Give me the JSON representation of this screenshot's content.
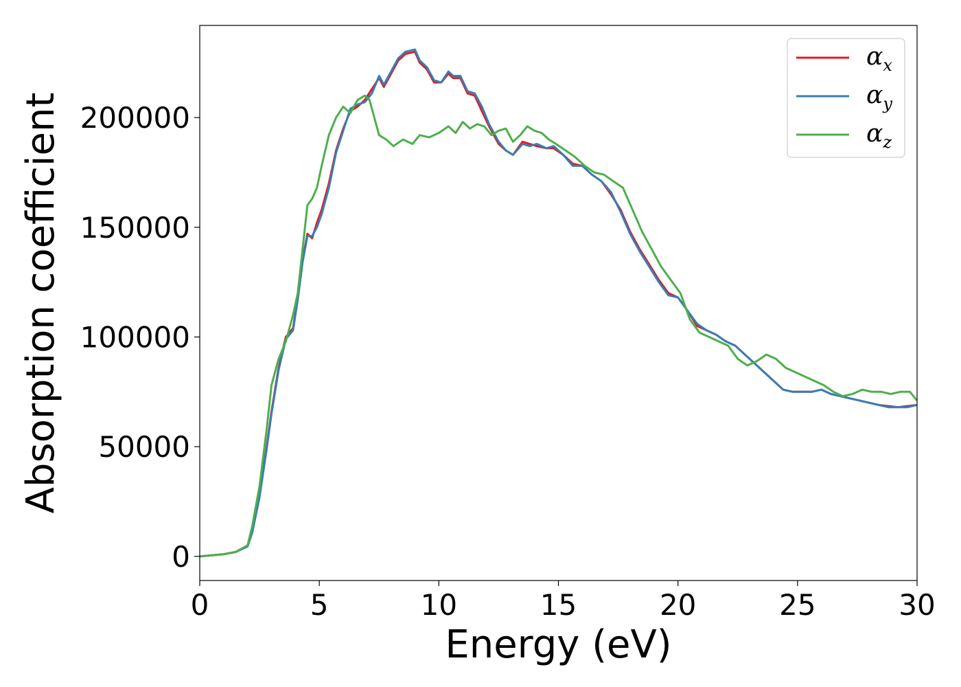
{
  "chart_data": {
    "type": "line",
    "xlabel": "Energy (eV)",
    "ylabel": "Absorption coefficient",
    "xlim": [
      0,
      30
    ],
    "ylim": [
      -11000,
      242000
    ],
    "xticks": [
      0,
      5,
      10,
      15,
      20,
      25,
      30
    ],
    "xtick_labels": [
      "0",
      "5",
      "10",
      "15",
      "20",
      "25",
      "30"
    ],
    "yticks": [
      0,
      50000,
      100000,
      150000,
      200000
    ],
    "ytick_labels": [
      "0",
      "50000",
      "100000",
      "150000",
      "200000"
    ],
    "grid": false,
    "legend_position": "top-right",
    "series": [
      {
        "name": "α",
        "subscript": "x",
        "color": "#e41a1c",
        "x": [
          0,
          1,
          1.5,
          2,
          2.2,
          2.5,
          2.8,
          3,
          3.3,
          3.6,
          3.9,
          4.1,
          4.3,
          4.5,
          4.7,
          4.9,
          5.1,
          5.4,
          5.7,
          6,
          6.3,
          6.6,
          6.9,
          7.2,
          7.5,
          7.7,
          8,
          8.3,
          8.6,
          9,
          9.2,
          9.5,
          9.8,
          10.1,
          10.4,
          10.6,
          10.9,
          11.2,
          11.5,
          11.8,
          12.1,
          12.5,
          12.8,
          13.1,
          13.5,
          13.8,
          14.1,
          14.5,
          14.8,
          15.2,
          15.6,
          16,
          16.4,
          16.8,
          17.2,
          17.6,
          18,
          18.4,
          18.8,
          19.2,
          19.6,
          20,
          20.4,
          20.8,
          21.2,
          21.6,
          22,
          22.4,
          22.8,
          23.2,
          23.6,
          24,
          24.4,
          24.8,
          25.2,
          25.6,
          26,
          26.4,
          26.8,
          27.2,
          27.6,
          28,
          28.4,
          28.8,
          29.2,
          29.6,
          30
        ],
        "y": [
          0,
          1000,
          2000,
          5000,
          12000,
          28000,
          50000,
          66000,
          86000,
          100000,
          104000,
          118000,
          135000,
          147000,
          145000,
          152000,
          158000,
          170000,
          185000,
          195000,
          203000,
          205000,
          208000,
          213000,
          218000,
          214000,
          220000,
          226000,
          229000,
          230000,
          225000,
          222000,
          216000,
          216000,
          220000,
          218000,
          218000,
          211000,
          210000,
          203000,
          196000,
          188000,
          185000,
          183000,
          189000,
          188000,
          187000,
          186000,
          186000,
          183000,
          179000,
          178000,
          174000,
          171000,
          165000,
          158000,
          148000,
          140000,
          133000,
          126000,
          120000,
          118000,
          112000,
          105000,
          103000,
          101000,
          98000,
          96000,
          92000,
          88000,
          84000,
          80000,
          76000,
          75000,
          75000,
          75000,
          76000,
          74000,
          73000,
          72000,
          71000,
          70000,
          69000,
          68500,
          68000,
          68500,
          69000
        ]
      },
      {
        "name": "α",
        "subscript": "y",
        "color": "#377eb8",
        "x": [
          0,
          1,
          1.5,
          2,
          2.2,
          2.5,
          2.8,
          3,
          3.3,
          3.6,
          3.9,
          4.1,
          4.3,
          4.5,
          4.7,
          4.9,
          5.1,
          5.4,
          5.7,
          6,
          6.3,
          6.6,
          6.9,
          7.2,
          7.5,
          7.7,
          8,
          8.3,
          8.6,
          9,
          9.2,
          9.5,
          9.8,
          10.1,
          10.4,
          10.6,
          10.9,
          11.2,
          11.5,
          11.8,
          12.1,
          12.5,
          12.8,
          13.1,
          13.5,
          13.8,
          14.1,
          14.5,
          14.8,
          15.2,
          15.6,
          16,
          16.4,
          16.8,
          17.2,
          17.6,
          18,
          18.4,
          18.8,
          19.2,
          19.6,
          20,
          20.4,
          20.8,
          21.2,
          21.6,
          22,
          22.4,
          22.8,
          23.2,
          23.6,
          24,
          24.4,
          24.8,
          25.2,
          25.6,
          26,
          26.4,
          26.8,
          27.2,
          27.6,
          28,
          28.4,
          28.8,
          29.2,
          29.6,
          30
        ],
        "y": [
          0,
          1000,
          2000,
          4500,
          11000,
          27000,
          49000,
          65000,
          85000,
          99000,
          103000,
          117000,
          134000,
          146000,
          146000,
          150000,
          156000,
          168000,
          184000,
          194000,
          204000,
          206000,
          207000,
          211000,
          219000,
          215000,
          221000,
          227000,
          230000,
          231000,
          226000,
          223000,
          217000,
          216000,
          221000,
          219000,
          219000,
          212000,
          211000,
          205000,
          197000,
          189000,
          185000,
          183000,
          188000,
          187000,
          188000,
          186000,
          187000,
          183000,
          178000,
          178000,
          174000,
          171000,
          166000,
          157000,
          147000,
          139000,
          132000,
          125000,
          119000,
          118000,
          112000,
          106000,
          103000,
          101000,
          98000,
          96000,
          92000,
          88000,
          84000,
          80000,
          76000,
          75000,
          75000,
          75000,
          76000,
          74000,
          73000,
          72000,
          71000,
          70000,
          69000,
          68000,
          68000,
          68000,
          69000
        ]
      },
      {
        "name": "α",
        "subscript": "z",
        "color": "#4daf4a",
        "x": [
          0,
          1,
          1.5,
          2,
          2.2,
          2.5,
          2.8,
          3,
          3.3,
          3.6,
          3.9,
          4.1,
          4.3,
          4.5,
          4.7,
          4.9,
          5.1,
          5.4,
          5.7,
          6,
          6.3,
          6.6,
          6.9,
          7.1,
          7.3,
          7.5,
          7.8,
          8.1,
          8.5,
          8.9,
          9.2,
          9.6,
          10,
          10.4,
          10.7,
          11,
          11.3,
          11.6,
          11.9,
          12.2,
          12.5,
          12.8,
          13.1,
          13.4,
          13.7,
          14,
          14.3,
          14.6,
          14.9,
          15.3,
          15.7,
          16.1,
          16.5,
          16.9,
          17.3,
          17.7,
          18.1,
          18.5,
          18.9,
          19.3,
          19.7,
          20.1,
          20.5,
          20.9,
          21.3,
          21.7,
          22.1,
          22.5,
          22.9,
          23.3,
          23.7,
          24.1,
          24.5,
          24.9,
          25.3,
          25.7,
          26.1,
          26.5,
          26.9,
          27.3,
          27.7,
          28.1,
          28.5,
          28.9,
          29.3,
          29.7,
          30
        ],
        "y": [
          0,
          1000,
          2000,
          5000,
          14000,
          32000,
          58000,
          78000,
          90000,
          98000,
          110000,
          120000,
          140000,
          160000,
          163000,
          168000,
          178000,
          192000,
          200000,
          205000,
          202000,
          208000,
          210000,
          208000,
          200000,
          192000,
          190000,
          187000,
          190000,
          188000,
          192000,
          191000,
          193000,
          196000,
          193000,
          198000,
          195000,
          197000,
          196000,
          192000,
          194000,
          195000,
          189000,
          192000,
          196000,
          194000,
          193000,
          190000,
          188000,
          185000,
          182000,
          178000,
          175000,
          174000,
          171000,
          168000,
          158000,
          148000,
          140000,
          132000,
          126000,
          120000,
          108000,
          102000,
          100000,
          98000,
          96000,
          90000,
          87000,
          89000,
          92000,
          90000,
          86000,
          84000,
          82000,
          80000,
          78000,
          75000,
          73000,
          74000,
          76000,
          75000,
          75000,
          74000,
          75000,
          75000,
          71000
        ]
      }
    ]
  }
}
